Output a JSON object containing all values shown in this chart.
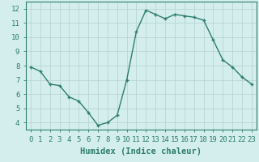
{
  "x": [
    0,
    1,
    2,
    3,
    4,
    5,
    6,
    7,
    8,
    9,
    10,
    11,
    12,
    13,
    14,
    15,
    16,
    17,
    18,
    19,
    20,
    21,
    22,
    23
  ],
  "y": [
    7.9,
    7.6,
    6.7,
    6.6,
    5.8,
    5.5,
    4.7,
    3.8,
    4.0,
    4.5,
    7.0,
    10.4,
    11.9,
    11.6,
    11.3,
    11.6,
    11.5,
    11.4,
    11.2,
    9.8,
    8.4,
    7.9,
    7.2,
    6.7
  ],
  "xlabel": "Humidex (Indice chaleur)",
  "line_color": "#2e7d6e",
  "marker_color": "#2e7d6e",
  "bg_color": "#d4eeee",
  "grid_color": "#b8d4d4",
  "text_color": "#2e7d6e",
  "ylim": [
    3.5,
    12.5
  ],
  "xlim": [
    -0.5,
    23.5
  ],
  "yticks": [
    4,
    5,
    6,
    7,
    8,
    9,
    10,
    11,
    12
  ],
  "xticks": [
    0,
    1,
    2,
    3,
    4,
    5,
    6,
    7,
    8,
    9,
    10,
    11,
    12,
    13,
    14,
    15,
    16,
    17,
    18,
    19,
    20,
    21,
    22,
    23
  ],
  "marker_size": 3.0,
  "line_width": 1.0,
  "xlabel_fontsize": 7.5,
  "tick_fontsize": 6.5
}
